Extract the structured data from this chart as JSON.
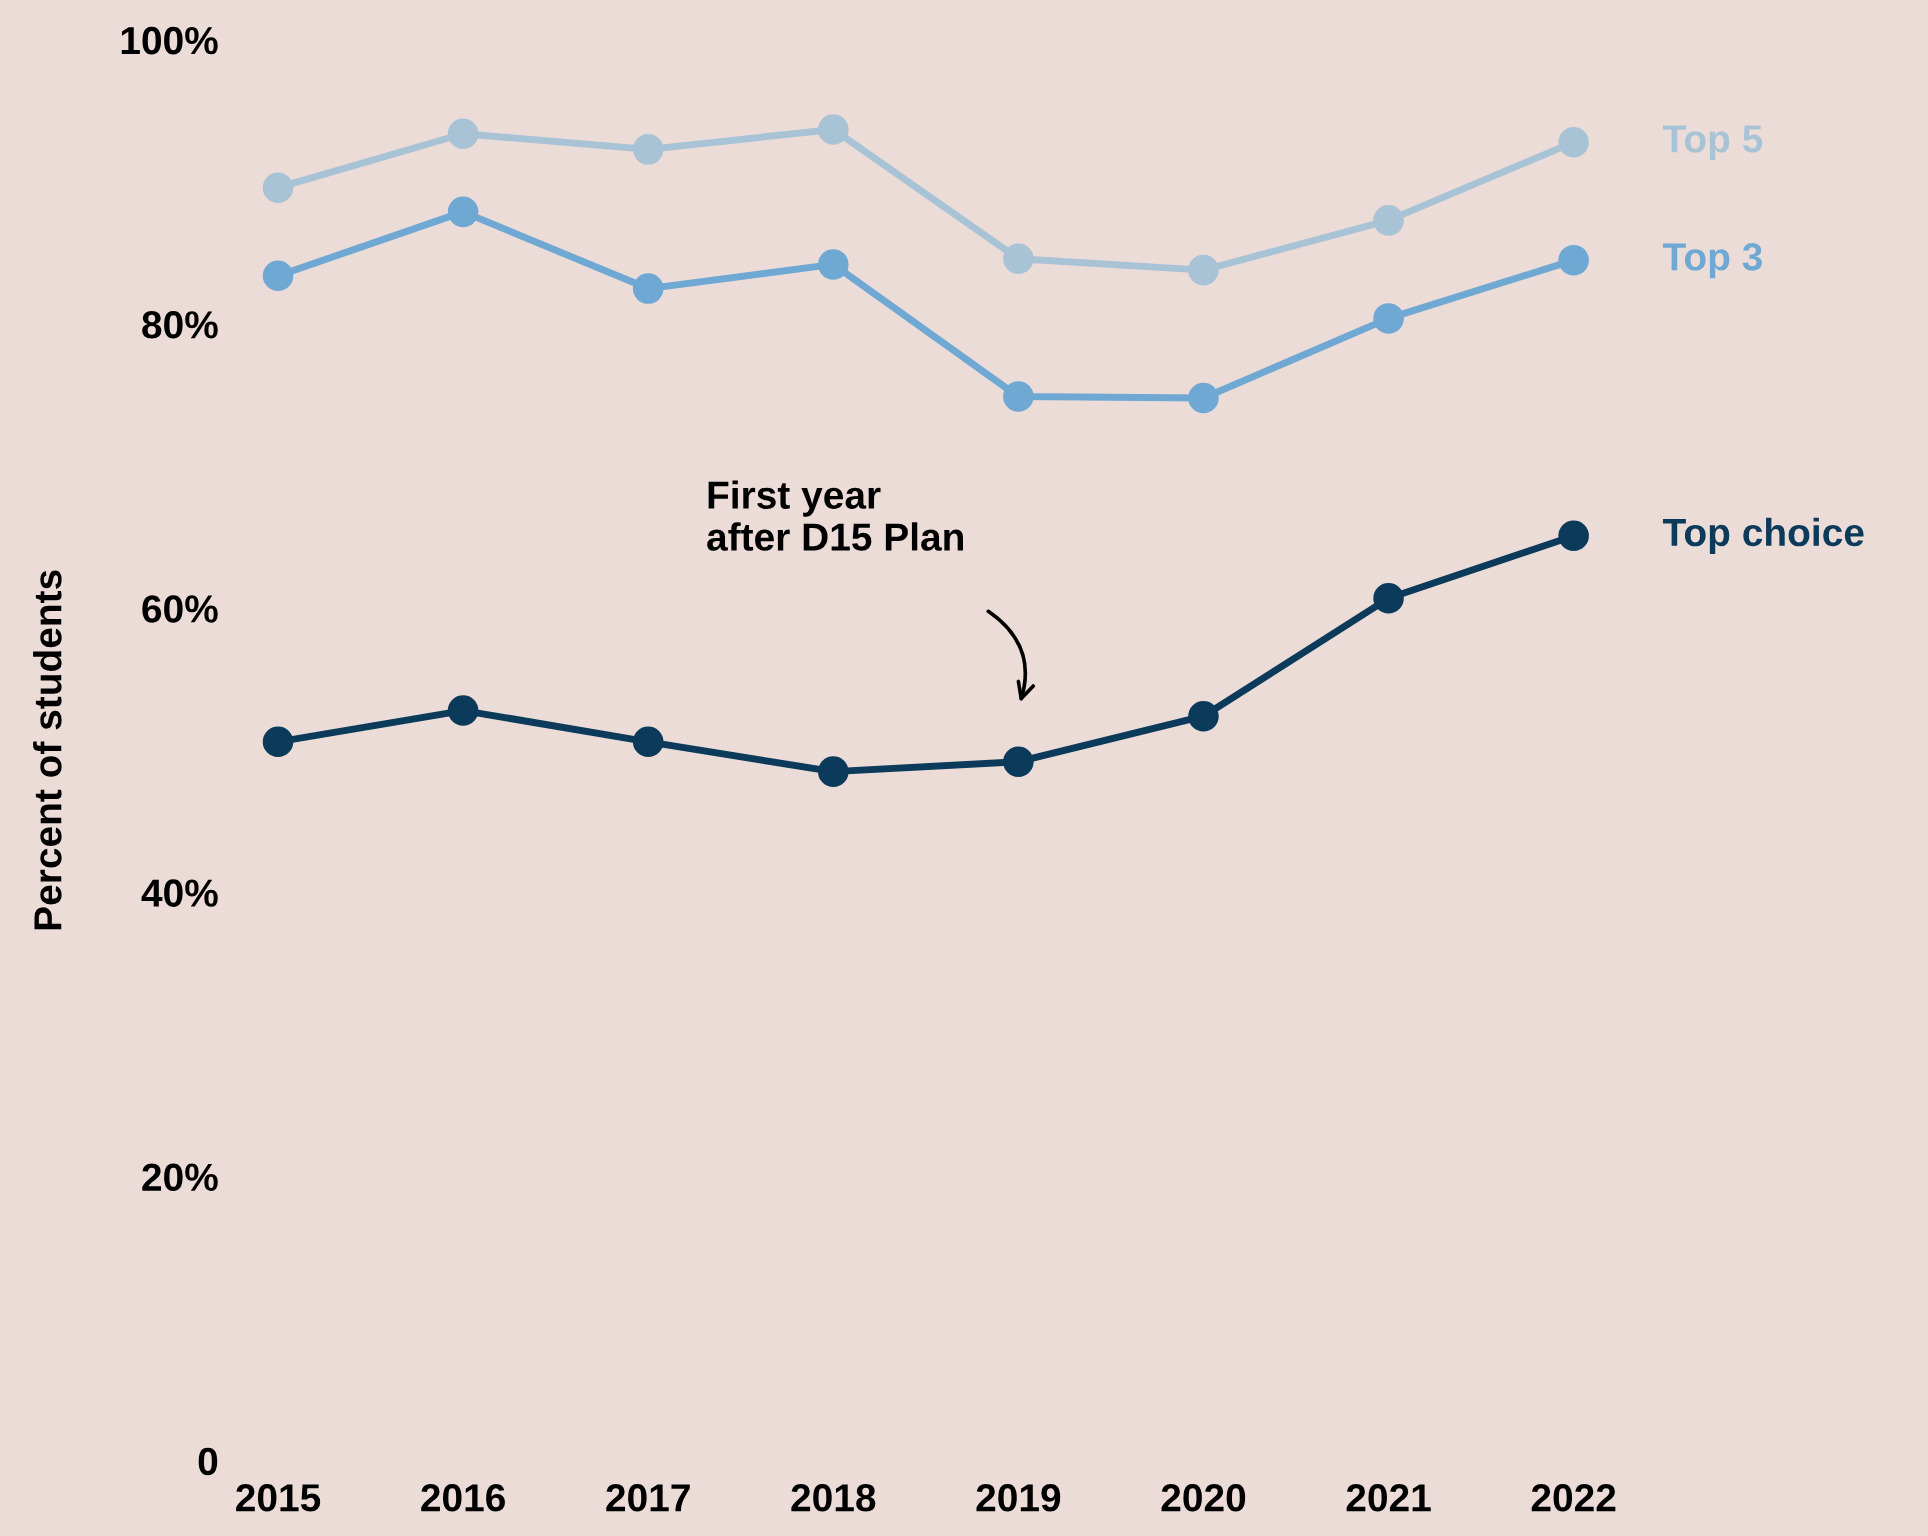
{
  "chart_data": {
    "type": "line",
    "ylabel": "Percent of students",
    "categories": [
      "2015",
      "2016",
      "2017",
      "2018",
      "2019",
      "2020",
      "2021",
      "2022"
    ],
    "series": [
      {
        "name": "Top 5",
        "color": "#a9c3d6",
        "values": [
          89.6,
          93.4,
          92.3,
          93.7,
          84.6,
          83.8,
          87.3,
          92.8
        ]
      },
      {
        "name": "Top 3",
        "color": "#6fa8d3",
        "values": [
          83.4,
          87.9,
          82.5,
          84.2,
          74.9,
          74.8,
          80.4,
          84.5
        ]
      },
      {
        "name": "Top choice",
        "color": "#0b3a5a",
        "values": [
          50.6,
          52.8,
          50.6,
          48.5,
          49.2,
          52.4,
          60.7,
          65.1
        ]
      }
    ],
    "ylim": [
      0,
      100
    ],
    "yticks": [
      {
        "value": 0,
        "label": "0"
      },
      {
        "value": 20,
        "label": "20%"
      },
      {
        "value": 40,
        "label": "40%"
      },
      {
        "value": 60,
        "label": "60%"
      },
      {
        "value": 80,
        "label": "80%"
      },
      {
        "value": 100,
        "label": "100%"
      }
    ],
    "annotations": [
      "First year\nafter D15 Plan"
    ],
    "grid": false,
    "legend": false,
    "marker": "circle",
    "line_style": "solid"
  }
}
